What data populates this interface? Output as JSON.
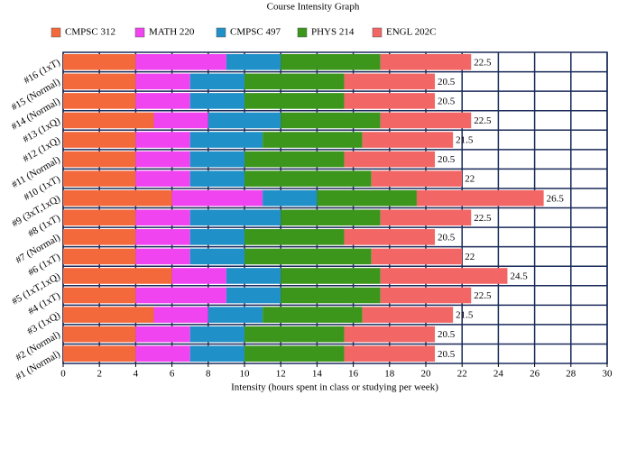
{
  "chart_data": {
    "type": "stacked-bar-horizontal",
    "title": "Course Intensity Graph",
    "x_label": "Intensity (hours spent in class or studying per week)",
    "categories": [
      "#1 (Normal)",
      "#2 (Normal)",
      "#3 (1xQ)",
      "#4 (1xT)",
      "#5 (1xT,1xQ)",
      "#6 (1xT)",
      "#7 (Normal)",
      "#8 (1xT)",
      "#9 (3xT,1xQ)",
      "#10 (1xT)",
      "#11 (Normal)",
      "#12 (1xQ)",
      "#13 (1xQ)",
      "#14 (Normal)",
      "#15 (Normal)",
      "#16 (1xT)"
    ],
    "series": [
      {
        "name": "CMPSC 312",
        "color": "#f4693c",
        "values": [
          4,
          4,
          5,
          4,
          6,
          4,
          4,
          4,
          6,
          4,
          4,
          4,
          5,
          4,
          4,
          4
        ]
      },
      {
        "name": "MATH 220",
        "color": "#f044f0",
        "values": [
          3,
          3,
          3,
          5,
          3,
          3,
          3,
          3,
          5,
          3,
          3,
          3,
          3,
          3,
          3,
          5
        ]
      },
      {
        "name": "CMPSC 497",
        "color": "#2090c8",
        "values": [
          3,
          3,
          3,
          3,
          3,
          3,
          3,
          5,
          3,
          3,
          3,
          4,
          4,
          3,
          3,
          3
        ]
      },
      {
        "name": "PHYS 214",
        "color": "#3c961c",
        "values": [
          5.5,
          5.5,
          5.5,
          5.5,
          5.5,
          7,
          5.5,
          5.5,
          5.5,
          7,
          5.5,
          5.5,
          5.5,
          5.5,
          5.5,
          5.5
        ]
      },
      {
        "name": "ENGL 202C",
        "color": "#f26666",
        "values": [
          5,
          5,
          5,
          5,
          7,
          5,
          5,
          5,
          7,
          5,
          5,
          5,
          5,
          5,
          5,
          5
        ]
      }
    ],
    "totals": [
      20.5,
      20.5,
      21.5,
      22.5,
      24.5,
      22,
      20.5,
      22.5,
      26.5,
      22,
      20.5,
      21.5,
      22.5,
      20.5,
      20.5,
      22.5
    ],
    "xlim": [
      0,
      30
    ],
    "xticks": [
      0,
      2,
      4,
      6,
      8,
      10,
      12,
      14,
      16,
      18,
      20,
      22,
      24,
      26,
      28,
      30
    ],
    "grid": true,
    "legend_position": "top"
  }
}
